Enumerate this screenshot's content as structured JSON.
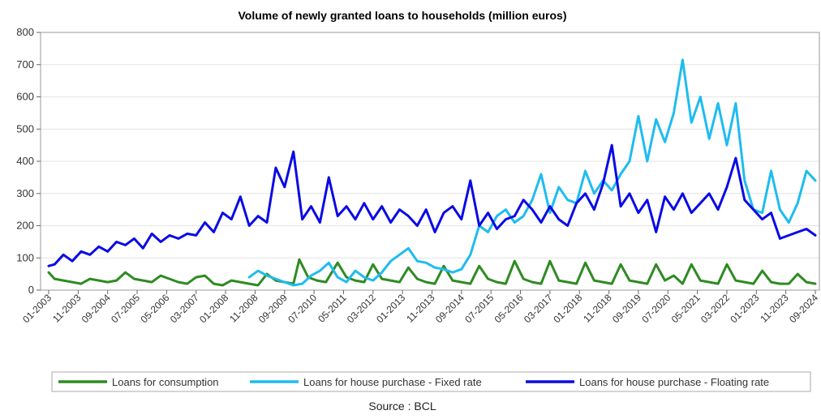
{
  "chart_data": {
    "type": "line",
    "title": "Volume of newly granted loans to households (million euros)",
    "source": "Source : BCL",
    "ylim": [
      0,
      800
    ],
    "y_ticks": [
      0,
      100,
      200,
      300,
      400,
      500,
      600,
      700,
      800
    ],
    "x_start": "2003-01",
    "x_end": "2024-09",
    "x_tick_labels": [
      "01-2003",
      "11-2003",
      "09-2004",
      "07-2005",
      "05-2006",
      "03-2007",
      "01-2008",
      "11-2008",
      "09-2009",
      "07-2010",
      "05-2011",
      "03-2012",
      "01-2013",
      "11-2013",
      "09-2014",
      "07-2015",
      "05-2016",
      "03-2017",
      "01-2018",
      "11-2018",
      "09-2019",
      "07-2020",
      "05-2021",
      "03-2022",
      "01-2023",
      "11-2023",
      "09-2024"
    ],
    "grid": true,
    "legend_position": "bottom",
    "series": [
      {
        "name": "Loans for consumption",
        "color": "#2e8b22",
        "points": [
          [
            "2003-01",
            55
          ],
          [
            "2003-03",
            35
          ],
          [
            "2003-06",
            30
          ],
          [
            "2003-09",
            25
          ],
          [
            "2003-12",
            20
          ],
          [
            "2004-03",
            35
          ],
          [
            "2004-06",
            30
          ],
          [
            "2004-09",
            25
          ],
          [
            "2004-12",
            30
          ],
          [
            "2005-03",
            55
          ],
          [
            "2005-06",
            35
          ],
          [
            "2005-09",
            30
          ],
          [
            "2005-12",
            25
          ],
          [
            "2006-03",
            45
          ],
          [
            "2006-06",
            35
          ],
          [
            "2006-09",
            25
          ],
          [
            "2006-12",
            20
          ],
          [
            "2007-03",
            40
          ],
          [
            "2007-06",
            45
          ],
          [
            "2007-09",
            20
          ],
          [
            "2007-12",
            15
          ],
          [
            "2008-03",
            30
          ],
          [
            "2008-06",
            25
          ],
          [
            "2008-09",
            20
          ],
          [
            "2008-12",
            15
          ],
          [
            "2009-03",
            50
          ],
          [
            "2009-06",
            30
          ],
          [
            "2009-09",
            25
          ],
          [
            "2009-12",
            20
          ],
          [
            "2010-02",
            95
          ],
          [
            "2010-05",
            40
          ],
          [
            "2010-08",
            30
          ],
          [
            "2010-11",
            25
          ],
          [
            "2011-03",
            85
          ],
          [
            "2011-06",
            40
          ],
          [
            "2011-09",
            30
          ],
          [
            "2011-12",
            25
          ],
          [
            "2012-03",
            80
          ],
          [
            "2012-06",
            35
          ],
          [
            "2012-09",
            30
          ],
          [
            "2012-12",
            25
          ],
          [
            "2013-03",
            70
          ],
          [
            "2013-06",
            35
          ],
          [
            "2013-09",
            25
          ],
          [
            "2013-12",
            20
          ],
          [
            "2014-03",
            75
          ],
          [
            "2014-06",
            30
          ],
          [
            "2014-09",
            25
          ],
          [
            "2014-12",
            20
          ],
          [
            "2015-03",
            75
          ],
          [
            "2015-06",
            35
          ],
          [
            "2015-09",
            25
          ],
          [
            "2015-12",
            20
          ],
          [
            "2016-03",
            90
          ],
          [
            "2016-06",
            35
          ],
          [
            "2016-09",
            25
          ],
          [
            "2016-12",
            20
          ],
          [
            "2017-03",
            90
          ],
          [
            "2017-06",
            30
          ],
          [
            "2017-09",
            25
          ],
          [
            "2017-12",
            20
          ],
          [
            "2018-03",
            85
          ],
          [
            "2018-06",
            30
          ],
          [
            "2018-09",
            25
          ],
          [
            "2018-12",
            20
          ],
          [
            "2019-03",
            80
          ],
          [
            "2019-06",
            30
          ],
          [
            "2019-09",
            25
          ],
          [
            "2019-12",
            20
          ],
          [
            "2020-03",
            80
          ],
          [
            "2020-06",
            30
          ],
          [
            "2020-09",
            45
          ],
          [
            "2020-12",
            20
          ],
          [
            "2021-03",
            80
          ],
          [
            "2021-06",
            30
          ],
          [
            "2021-09",
            25
          ],
          [
            "2021-12",
            20
          ],
          [
            "2022-03",
            80
          ],
          [
            "2022-06",
            30
          ],
          [
            "2022-09",
            25
          ],
          [
            "2022-12",
            20
          ],
          [
            "2023-03",
            60
          ],
          [
            "2023-06",
            25
          ],
          [
            "2023-09",
            20
          ],
          [
            "2023-12",
            20
          ],
          [
            "2024-03",
            50
          ],
          [
            "2024-06",
            25
          ],
          [
            "2024-09",
            20
          ]
        ]
      },
      {
        "name": "Loans for house purchase - Fixed rate",
        "color": "#1ebcf0",
        "points": [
          [
            "2008-09",
            40
          ],
          [
            "2008-12",
            60
          ],
          [
            "2009-03",
            45
          ],
          [
            "2009-06",
            35
          ],
          [
            "2009-09",
            25
          ],
          [
            "2009-12",
            15
          ],
          [
            "2010-03",
            20
          ],
          [
            "2010-06",
            45
          ],
          [
            "2010-09",
            60
          ],
          [
            "2010-12",
            85
          ],
          [
            "2011-03",
            40
          ],
          [
            "2011-06",
            25
          ],
          [
            "2011-09",
            60
          ],
          [
            "2011-12",
            40
          ],
          [
            "2012-03",
            30
          ],
          [
            "2012-06",
            55
          ],
          [
            "2012-09",
            90
          ],
          [
            "2012-12",
            110
          ],
          [
            "2013-03",
            130
          ],
          [
            "2013-06",
            90
          ],
          [
            "2013-09",
            85
          ],
          [
            "2013-12",
            70
          ],
          [
            "2014-03",
            65
          ],
          [
            "2014-06",
            55
          ],
          [
            "2014-09",
            65
          ],
          [
            "2014-12",
            110
          ],
          [
            "2015-03",
            200
          ],
          [
            "2015-06",
            180
          ],
          [
            "2015-09",
            230
          ],
          [
            "2015-12",
            250
          ],
          [
            "2016-03",
            210
          ],
          [
            "2016-06",
            230
          ],
          [
            "2016-09",
            280
          ],
          [
            "2016-12",
            360
          ],
          [
            "2017-03",
            240
          ],
          [
            "2017-06",
            320
          ],
          [
            "2017-09",
            280
          ],
          [
            "2017-12",
            270
          ],
          [
            "2018-03",
            370
          ],
          [
            "2018-06",
            300
          ],
          [
            "2018-09",
            340
          ],
          [
            "2018-12",
            310
          ],
          [
            "2019-03",
            360
          ],
          [
            "2019-06",
            400
          ],
          [
            "2019-09",
            540
          ],
          [
            "2019-12",
            400
          ],
          [
            "2020-03",
            530
          ],
          [
            "2020-06",
            460
          ],
          [
            "2020-09",
            550
          ],
          [
            "2020-12",
            715
          ],
          [
            "2021-03",
            520
          ],
          [
            "2021-06",
            600
          ],
          [
            "2021-09",
            470
          ],
          [
            "2021-12",
            580
          ],
          [
            "2022-03",
            450
          ],
          [
            "2022-06",
            580
          ],
          [
            "2022-09",
            340
          ],
          [
            "2022-12",
            250
          ],
          [
            "2023-03",
            240
          ],
          [
            "2023-06",
            370
          ],
          [
            "2023-09",
            250
          ],
          [
            "2023-12",
            210
          ],
          [
            "2024-03",
            270
          ],
          [
            "2024-06",
            370
          ],
          [
            "2024-09",
            340
          ]
        ]
      },
      {
        "name": "Loans for house purchase - Floating rate",
        "color": "#0a0ae6",
        "points": [
          [
            "2003-01",
            75
          ],
          [
            "2003-03",
            80
          ],
          [
            "2003-06",
            110
          ],
          [
            "2003-09",
            90
          ],
          [
            "2003-12",
            120
          ],
          [
            "2004-03",
            110
          ],
          [
            "2004-06",
            135
          ],
          [
            "2004-09",
            120
          ],
          [
            "2004-12",
            150
          ],
          [
            "2005-03",
            140
          ],
          [
            "2005-06",
            160
          ],
          [
            "2005-09",
            130
          ],
          [
            "2005-12",
            175
          ],
          [
            "2006-03",
            150
          ],
          [
            "2006-06",
            170
          ],
          [
            "2006-09",
            160
          ],
          [
            "2006-12",
            175
          ],
          [
            "2007-03",
            170
          ],
          [
            "2007-06",
            210
          ],
          [
            "2007-09",
            180
          ],
          [
            "2007-12",
            240
          ],
          [
            "2008-03",
            220
          ],
          [
            "2008-06",
            290
          ],
          [
            "2008-09",
            200
          ],
          [
            "2008-12",
            230
          ],
          [
            "2009-03",
            210
          ],
          [
            "2009-06",
            380
          ],
          [
            "2009-09",
            320
          ],
          [
            "2009-12",
            430
          ],
          [
            "2010-03",
            220
          ],
          [
            "2010-06",
            260
          ],
          [
            "2010-09",
            210
          ],
          [
            "2010-12",
            350
          ],
          [
            "2011-03",
            230
          ],
          [
            "2011-06",
            260
          ],
          [
            "2011-09",
            220
          ],
          [
            "2011-12",
            270
          ],
          [
            "2012-03",
            220
          ],
          [
            "2012-06",
            260
          ],
          [
            "2012-09",
            210
          ],
          [
            "2012-12",
            250
          ],
          [
            "2013-03",
            230
          ],
          [
            "2013-06",
            200
          ],
          [
            "2013-09",
            250
          ],
          [
            "2013-12",
            180
          ],
          [
            "2014-03",
            240
          ],
          [
            "2014-06",
            260
          ],
          [
            "2014-09",
            220
          ],
          [
            "2014-12",
            340
          ],
          [
            "2015-03",
            200
          ],
          [
            "2015-06",
            240
          ],
          [
            "2015-09",
            190
          ],
          [
            "2015-12",
            220
          ],
          [
            "2016-03",
            230
          ],
          [
            "2016-06",
            280
          ],
          [
            "2016-09",
            250
          ],
          [
            "2016-12",
            210
          ],
          [
            "2017-03",
            260
          ],
          [
            "2017-06",
            220
          ],
          [
            "2017-09",
            200
          ],
          [
            "2017-12",
            270
          ],
          [
            "2018-03",
            300
          ],
          [
            "2018-06",
            250
          ],
          [
            "2018-09",
            330
          ],
          [
            "2018-12",
            450
          ],
          [
            "2019-03",
            260
          ],
          [
            "2019-06",
            300
          ],
          [
            "2019-09",
            240
          ],
          [
            "2019-12",
            280
          ],
          [
            "2020-03",
            180
          ],
          [
            "2020-06",
            290
          ],
          [
            "2020-09",
            250
          ],
          [
            "2020-12",
            300
          ],
          [
            "2021-03",
            240
          ],
          [
            "2021-06",
            270
          ],
          [
            "2021-09",
            300
          ],
          [
            "2021-12",
            250
          ],
          [
            "2022-03",
            320
          ],
          [
            "2022-06",
            410
          ],
          [
            "2022-09",
            280
          ],
          [
            "2022-12",
            250
          ],
          [
            "2023-03",
            220
          ],
          [
            "2023-06",
            240
          ],
          [
            "2023-09",
            160
          ],
          [
            "2023-12",
            170
          ],
          [
            "2024-03",
            180
          ],
          [
            "2024-06",
            190
          ],
          [
            "2024-09",
            170
          ]
        ]
      }
    ]
  }
}
